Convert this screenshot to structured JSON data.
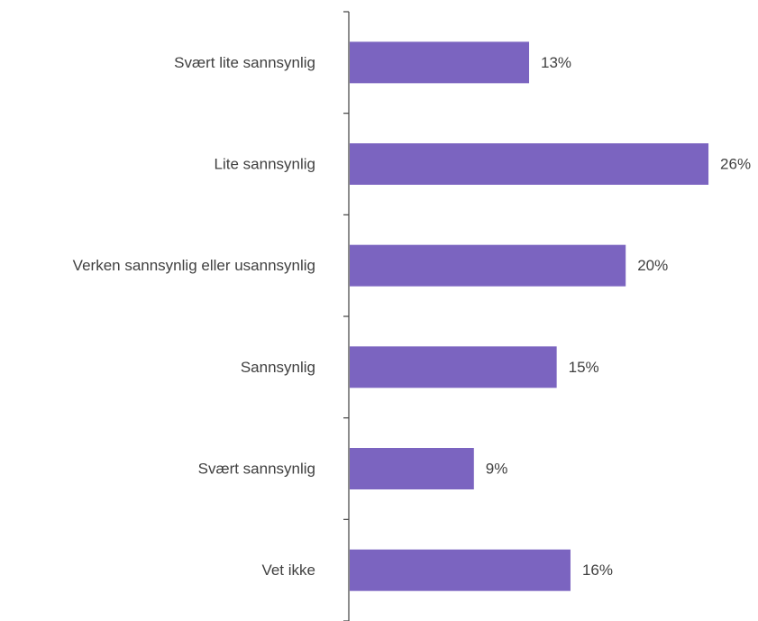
{
  "chart_data": {
    "type": "bar",
    "orientation": "horizontal",
    "categories": [
      "Svært lite sannsynlig",
      "Lite sannsynlig",
      "Verken sannsynlig eller usannsynlig",
      "Sannsynlig",
      "Svært sannsynlig",
      "Vet ikke"
    ],
    "values": [
      13,
      26,
      20,
      15,
      9,
      16
    ],
    "value_labels": [
      "13%",
      "26%",
      "20%",
      "15%",
      "9%",
      "16%"
    ],
    "unit": "%",
    "xlim": [
      0,
      26
    ],
    "grid": false,
    "legend": "none",
    "bar_color": "#7b64c0",
    "axis_color": "#404040",
    "text_color": "#404040"
  }
}
